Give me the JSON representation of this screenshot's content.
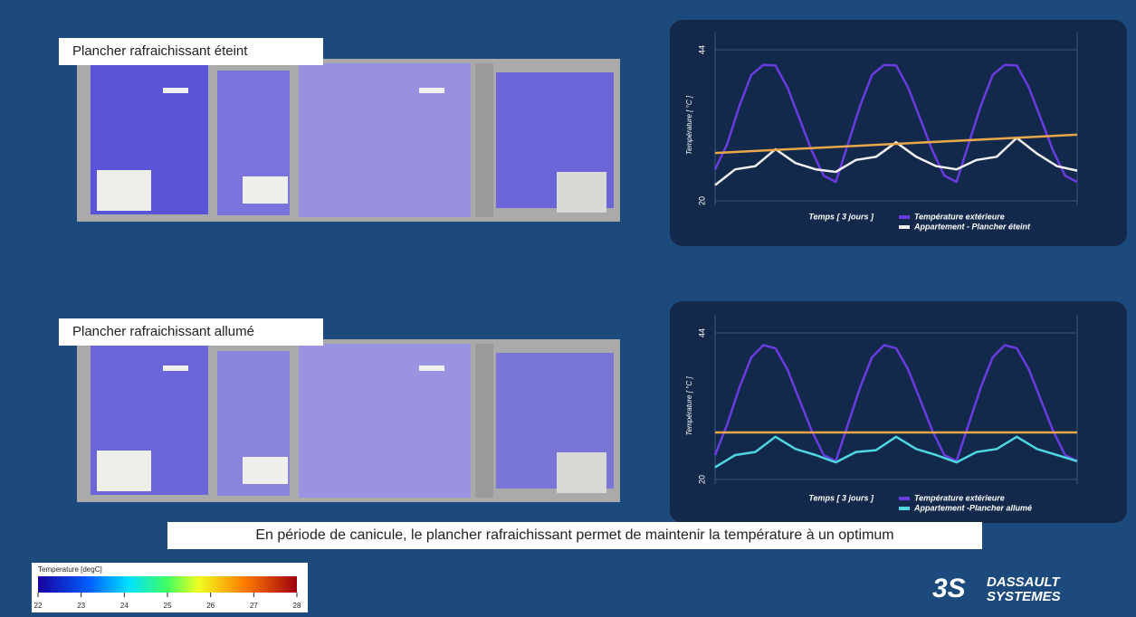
{
  "panels": [
    {
      "label": "Plancher rafraichissant éteint"
    },
    {
      "label": "Plancher rafraichissant allumé"
    }
  ],
  "caption": "En période de canicule, le plancher rafraichissant permet de maintenir la température à un optimum",
  "colorbar": {
    "title": "Temperature [degC]",
    "ticks": [
      22,
      23,
      24,
      25,
      26,
      27,
      28
    ]
  },
  "logo": {
    "line1": "DASSAULT",
    "line2": "SYSTEMES"
  },
  "chart_data": [
    {
      "type": "line",
      "y_label": "Température [ °C ]",
      "x_label": "Temps [ 3 jours ]",
      "ylim": [
        20,
        44
      ],
      "yticks": [
        20,
        44
      ],
      "series": [
        {
          "name": "Température extérieure",
          "color": "#6a3be0",
          "values": [
            25,
            29,
            35,
            40,
            41.6,
            41.5,
            38,
            33,
            28,
            24,
            23,
            29,
            35,
            40,
            41.6,
            41.5,
            38,
            33,
            28,
            24,
            23,
            29,
            35,
            40,
            41.6,
            41.5,
            38,
            33,
            28,
            24,
            23
          ]
        },
        {
          "name": "Appartement - Plancher éteint",
          "color": "#f2f2f2",
          "values": [
            22.5,
            25,
            25.5,
            28.2,
            26,
            25,
            24.6,
            26.5,
            27,
            29.3,
            27,
            25.5,
            25,
            26.5,
            27,
            30,
            27.5,
            25.5,
            24.8
          ]
        },
        {
          "color": "#e8a84a",
          "values": [
            27.6,
            30.5
          ]
        }
      ]
    },
    {
      "type": "line",
      "y_label": "Température [ °C ]",
      "x_label": "Temps [ 3 jours ]",
      "ylim": [
        20,
        44
      ],
      "yticks": [
        20,
        44
      ],
      "series": [
        {
          "name": "Température extérieure",
          "color": "#6a3be0",
          "values": [
            24,
            29,
            35,
            40,
            42,
            41.5,
            38,
            33,
            28,
            24,
            23,
            29,
            35,
            40,
            42,
            41.5,
            38,
            33,
            28,
            24,
            23,
            29,
            35,
            40,
            42,
            41.5,
            38,
            33,
            28,
            24,
            23
          ]
        },
        {
          "name": "Appartement -Plancher allumé",
          "color": "#4fd6e0",
          "values": [
            22,
            24,
            24.5,
            27,
            25,
            24,
            22.8,
            24.5,
            24.8,
            27,
            25,
            24,
            22.8,
            24.5,
            25,
            27,
            25,
            24,
            23
          ]
        },
        {
          "color": "#e8a84a",
          "values": [
            27.7,
            27.7
          ]
        }
      ]
    }
  ]
}
